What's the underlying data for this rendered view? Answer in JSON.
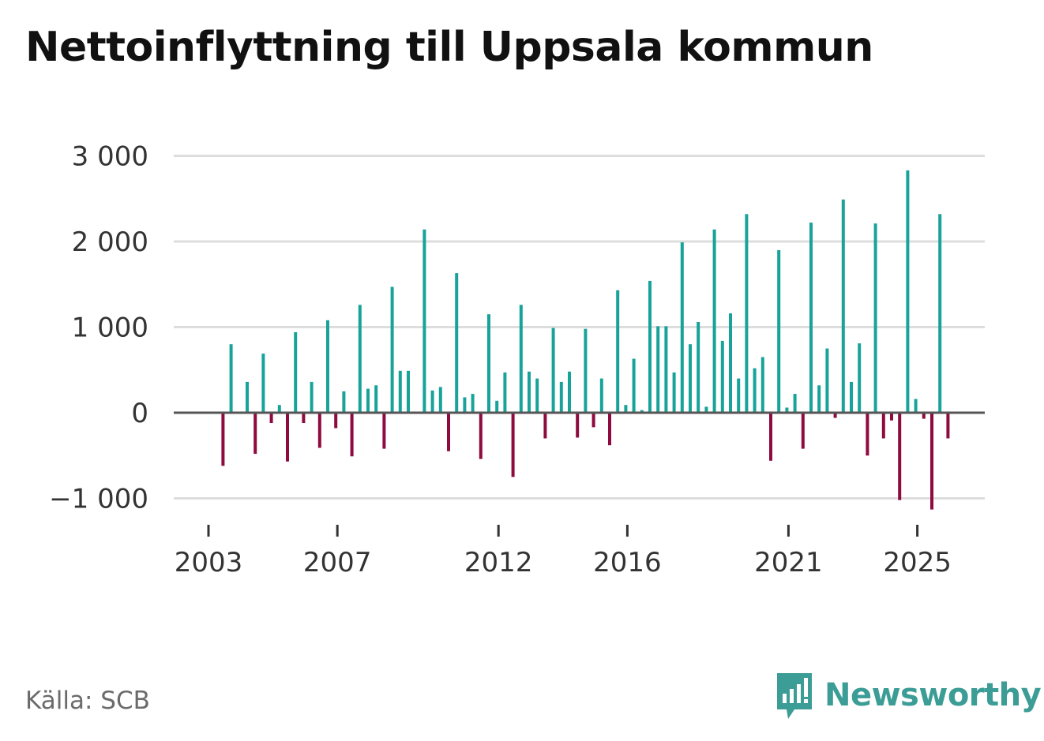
{
  "title": "Nettoinflyttning till Uppsala kommun",
  "source": "Källa: SCB",
  "brand": {
    "name": "Newsworthy",
    "icon": "newsworthy-logo-icon",
    "color": "#3c9c96"
  },
  "colors": {
    "positive": "#17a39a",
    "negative": "#8e0a3f",
    "grid": "#dddddd",
    "zero": "#555555"
  },
  "chart_data": {
    "type": "bar",
    "title": "Nettoinflyttning till Uppsala kommun",
    "xlabel": "",
    "ylabel": "",
    "ylim": [
      -1000,
      3000
    ],
    "yticks": [
      3000,
      2000,
      1000,
      0,
      -1000
    ],
    "ytick_labels": [
      "3 000",
      "2 000",
      "1 000",
      "0",
      "−1 000"
    ],
    "xticks": [
      {
        "label": "2003",
        "index": 0
      },
      {
        "label": "2007",
        "index": 16
      },
      {
        "label": "2012",
        "index": 36
      },
      {
        "label": "2016",
        "index": 52
      },
      {
        "label": "2021",
        "index": 72
      },
      {
        "label": "2025",
        "index": 88
      }
    ],
    "frequency": "quarterly",
    "start": "2003 Q1",
    "values": [
      0,
      0,
      -620,
      800,
      0,
      360,
      -480,
      690,
      -120,
      90,
      -570,
      940,
      -120,
      360,
      -410,
      1080,
      -180,
      250,
      -510,
      1260,
      280,
      320,
      -420,
      1470,
      490,
      490,
      0,
      2140,
      260,
      300,
      -450,
      1630,
      180,
      220,
      -540,
      1150,
      140,
      470,
      -750,
      1260,
      480,
      400,
      -300,
      990,
      360,
      480,
      -290,
      980,
      -170,
      400,
      -380,
      1430,
      90,
      630,
      30,
      1540,
      1010,
      1010,
      470,
      1990,
      800,
      1060,
      70,
      2140,
      840,
      1160,
      400,
      2320,
      520,
      650,
      -560,
      1900,
      60,
      220,
      -420,
      2220,
      320,
      750,
      -60,
      2490,
      360,
      810,
      -500,
      2210,
      -300,
      -90,
      -1020,
      2830,
      160,
      -70,
      -1130,
      2320,
      -300
    ]
  }
}
